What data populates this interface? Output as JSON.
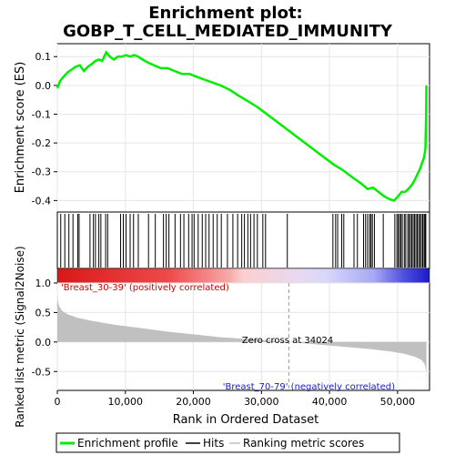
{
  "chart_data": {
    "type": "line",
    "title_line1": "Enrichment plot:",
    "title_line2": "GOBP_T_CELL_MEDIATED_IMMUNITY",
    "top_panel": {
      "ylabel": "Enrichment score (ES)",
      "ylim": [
        -0.44,
        0.145
      ],
      "yticks": [
        0.1,
        0.0,
        -0.1,
        -0.2,
        -0.3,
        -0.4
      ],
      "ytick_labels": [
        "0.1",
        "0.0",
        "-0.1",
        "-0.2",
        "-0.3",
        "-0.4"
      ],
      "series": [
        {
          "name": "Enrichment profile",
          "color": "#00ee00",
          "x": [
            0,
            400,
            900,
            1500,
            2100,
            2700,
            3300,
            3900,
            4500,
            5100,
            5600,
            6100,
            6600,
            7200,
            7700,
            8300,
            8900,
            9500,
            10100,
            10700,
            11300,
            11900,
            12500,
            13300,
            14200,
            15200,
            16200,
            17200,
            18300,
            19400,
            20500,
            21600,
            22800,
            24000,
            25300,
            26600,
            28000,
            29400,
            30800,
            32200,
            33600,
            35000,
            36400,
            37800,
            39200,
            40600,
            42000,
            43400,
            44600,
            45600,
            46400,
            47200,
            48000,
            48800,
            49500,
            50100,
            50600,
            51100,
            51600,
            52100,
            52500,
            52900,
            53300,
            53600,
            53900,
            54100,
            54200,
            54250
          ],
          "y": [
            -0.01,
            0.015,
            0.03,
            0.045,
            0.055,
            0.065,
            0.07,
            0.05,
            0.065,
            0.075,
            0.085,
            0.09,
            0.085,
            0.115,
            0.1,
            0.09,
            0.1,
            0.1,
            0.105,
            0.1,
            0.105,
            0.1,
            0.09,
            0.08,
            0.07,
            0.06,
            0.06,
            0.05,
            0.04,
            0.04,
            0.03,
            0.02,
            0.01,
            0.0,
            -0.015,
            -0.035,
            -0.055,
            -0.075,
            -0.1,
            -0.125,
            -0.15,
            -0.175,
            -0.2,
            -0.225,
            -0.25,
            -0.275,
            -0.295,
            -0.32,
            -0.34,
            -0.36,
            -0.355,
            -0.37,
            -0.385,
            -0.395,
            -0.4,
            -0.385,
            -0.37,
            -0.37,
            -0.36,
            -0.345,
            -0.33,
            -0.31,
            -0.29,
            -0.27,
            -0.25,
            -0.22,
            -0.1,
            0.0
          ]
        }
      ],
      "hits_x": [
        500,
        1100,
        1700,
        2300,
        3000,
        3200,
        4800,
        5300,
        5600,
        6100,
        6400,
        7100,
        7400,
        9300,
        9700,
        10100,
        10700,
        11200,
        11900,
        13400,
        14400,
        15600,
        16000,
        16400,
        17300,
        18100,
        18600,
        19300,
        19800,
        20100,
        20700,
        21300,
        21800,
        22300,
        22900,
        23500,
        24100,
        25000,
        25800,
        26500,
        27100,
        27500,
        28000,
        28400,
        28900,
        29400,
        30200,
        30600,
        33800,
        40500,
        40900,
        41200,
        41800,
        42100,
        43600,
        44100,
        45000,
        45300,
        45600,
        45900,
        46100,
        46300,
        46600,
        47900,
        49600,
        49900,
        50100,
        50300,
        50500,
        50700,
        51000,
        51200,
        51500,
        51700,
        51900,
        52100,
        52300,
        52500,
        52700,
        52900,
        53100,
        53300,
        53500,
        53700,
        53900,
        54050,
        54150
      ]
    },
    "bar": {
      "pos_label": "'Breast_30-39' (positively correlated)",
      "neg_label": "'Breast_70-79' (negatively correlated)",
      "pos_color": "#e41a1c",
      "neg_color": "#1a1ad0"
    },
    "bottom_panel": {
      "ylabel": "Ranked list metric (Signal2Noise)",
      "ylim": [
        -0.82,
        1.0
      ],
      "yticks": [
        1.0,
        0.5,
        0.0,
        -0.5
      ],
      "ytick_labels": [
        "1.0",
        "0.5",
        "0.0",
        "-0.5"
      ],
      "metric_points_x": [
        0,
        100,
        300,
        700,
        1500,
        3000,
        5000,
        8000,
        12000,
        16000,
        20000,
        24000,
        28000,
        32000,
        34024,
        38000,
        42000,
        46000,
        49000,
        51000,
        52500,
        53500,
        54000,
        54200,
        54250
      ],
      "metric_points_y": [
        0.8,
        0.68,
        0.6,
        0.53,
        0.47,
        0.41,
        0.36,
        0.3,
        0.24,
        0.18,
        0.13,
        0.08,
        0.05,
        0.02,
        0.0,
        -0.04,
        -0.08,
        -0.12,
        -0.16,
        -0.2,
        -0.25,
        -0.3,
        -0.38,
        -0.5,
        -0.8
      ],
      "zero_cross_label": "Zero cross at 34024",
      "zero_cross_x": 34024
    },
    "x_axis": {
      "xlabel": "Rank in Ordered Dataset",
      "xlim": [
        0,
        54700
      ],
      "xticks": [
        0,
        10000,
        20000,
        30000,
        40000,
        50000
      ],
      "xtick_labels": [
        "0",
        "10,000",
        "20,000",
        "30,000",
        "40,000",
        "50,000"
      ]
    },
    "legend": {
      "placement": "bottom",
      "items": [
        {
          "label": "Enrichment profile",
          "color": "#00ee00",
          "kind": "thick-line"
        },
        {
          "label": "Hits",
          "color": "#000000",
          "kind": "line"
        },
        {
          "label": "Ranking metric scores",
          "color": "#c0c0c0",
          "kind": "line"
        }
      ]
    }
  }
}
